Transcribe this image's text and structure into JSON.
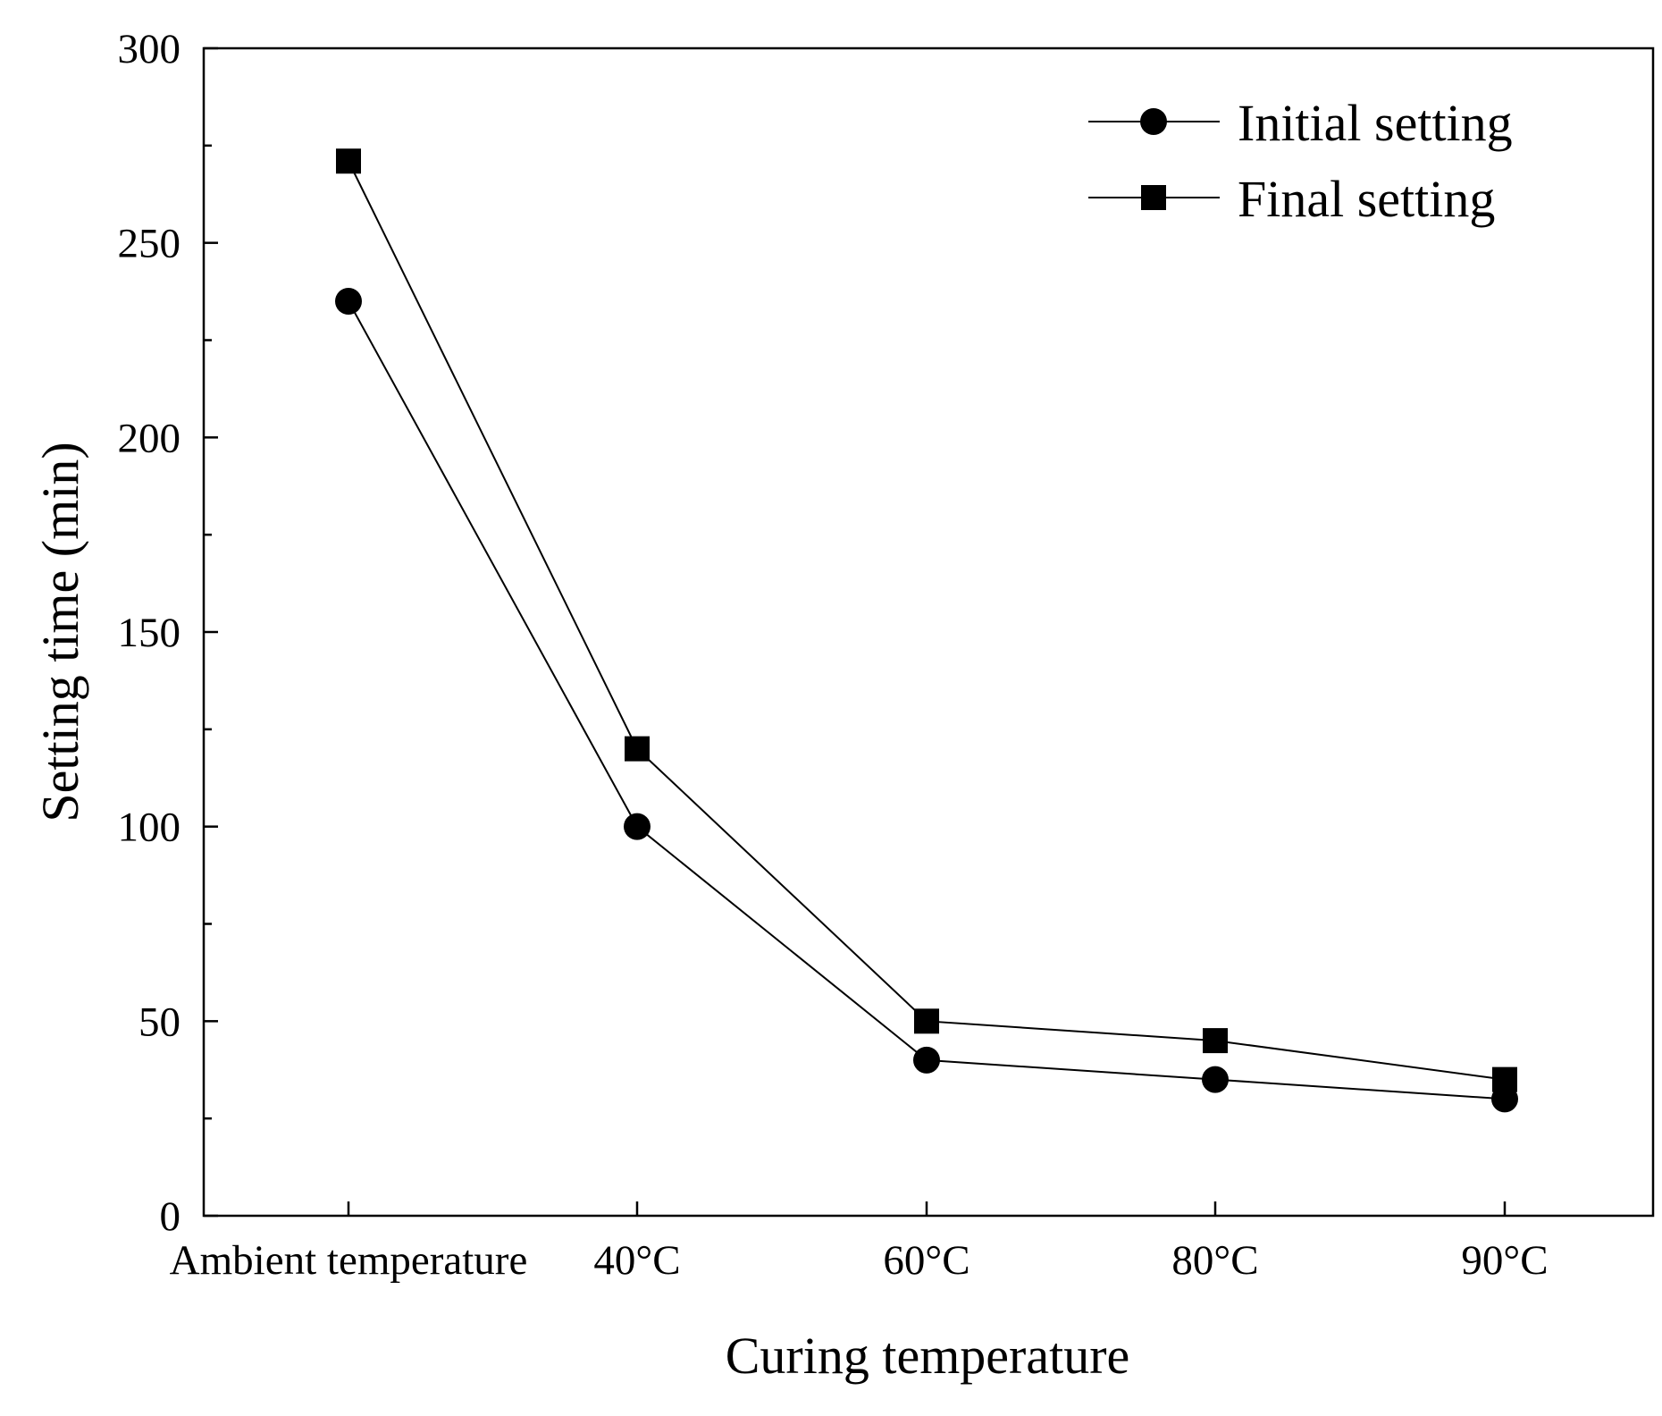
{
  "chart_data": {
    "type": "line",
    "title": "",
    "xlabel": "Curing temperature",
    "ylabel": "Setting time (min)",
    "categories": [
      "Ambient temperature",
      "40°C",
      "60°C",
      "80°C",
      "90°C"
    ],
    "ylim": [
      0,
      300
    ],
    "yticks": [
      0,
      50,
      100,
      150,
      200,
      250,
      300
    ],
    "yticks_text": [
      "0",
      "50",
      "100",
      "150",
      "200",
      "250",
      "300"
    ],
    "grid": false,
    "legend_position": "top-right",
    "series": [
      {
        "name": "Initial setting",
        "marker": "circle",
        "values": [
          235,
          100,
          40,
          35,
          30
        ]
      },
      {
        "name": "Final setting",
        "marker": "square",
        "values": [
          271,
          120,
          50,
          45,
          35
        ]
      }
    ],
    "colors": {
      "line": "#000000",
      "marker": "#000000",
      "background": "#ffffff"
    }
  }
}
